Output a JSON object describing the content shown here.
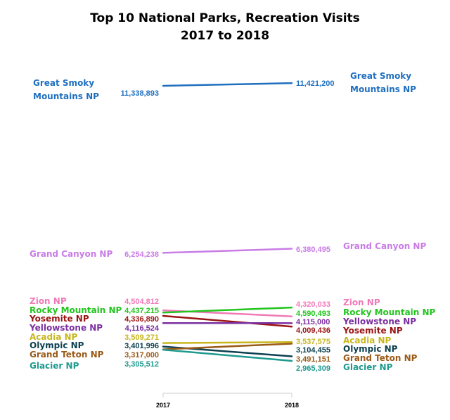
{
  "chart_data": {
    "type": "line",
    "title": "Top 10 National Parks, Recreation Visits",
    "subtitle": "2017 to 2018",
    "xlabel": "",
    "ylabel": "",
    "x": [
      "2017",
      "2018"
    ],
    "grid": false,
    "series": [
      {
        "name": "Great Smoky Mountains NP",
        "label_2017": "11,338,893",
        "label_2018": "11,421,200",
        "values": [
          11338893,
          11421200
        ],
        "color": "#1f6fbf"
      },
      {
        "name": "Grand Canyon NP",
        "label_2017": "6,254,238",
        "label_2018": "6,380,495",
        "values": [
          6254238,
          6380495
        ],
        "color": "#c97ce6"
      },
      {
        "name": "Zion NP",
        "label_2017": "4,504,812",
        "label_2018": "4,320,033",
        "values": [
          4504812,
          4320033
        ],
        "color": "#f07ab8"
      },
      {
        "name": "Rocky Mountain NP",
        "label_2017": "4,437,215",
        "label_2018": "4,590,493",
        "values": [
          4437215,
          4590493
        ],
        "color": "#22c51e"
      },
      {
        "name": "Yosemite NP",
        "label_2017": "4,336,890",
        "label_2018": "4,009,436",
        "values": [
          4336890,
          4009436
        ],
        "color": "#9b1414"
      },
      {
        "name": "Yellowstone NP",
        "label_2017": "4,116,524",
        "label_2018": "4,115,000",
        "values": [
          4116524,
          4115000
        ],
        "color": "#7a2fa0"
      },
      {
        "name": "Acadia NP",
        "label_2017": "3,509,271",
        "label_2018": "3,537,575",
        "values": [
          3509271,
          3537575
        ],
        "color": "#c8b71c"
      },
      {
        "name": "Olympic NP",
        "label_2017": "3,401,996",
        "label_2018": "3,104,455",
        "values": [
          3401996,
          3104455
        ],
        "color": "#0e4050"
      },
      {
        "name": "Grand Teton NP",
        "label_2017": "3,317,000",
        "label_2018": "3,491,151",
        "values": [
          3317000,
          3491151
        ],
        "color": "#9a5a18"
      },
      {
        "name": "Glacier NP",
        "label_2017": "3,305,512",
        "label_2018": "2,965,309",
        "values": [
          3305512,
          2965309
        ],
        "color": "#1e9a8e"
      }
    ]
  }
}
